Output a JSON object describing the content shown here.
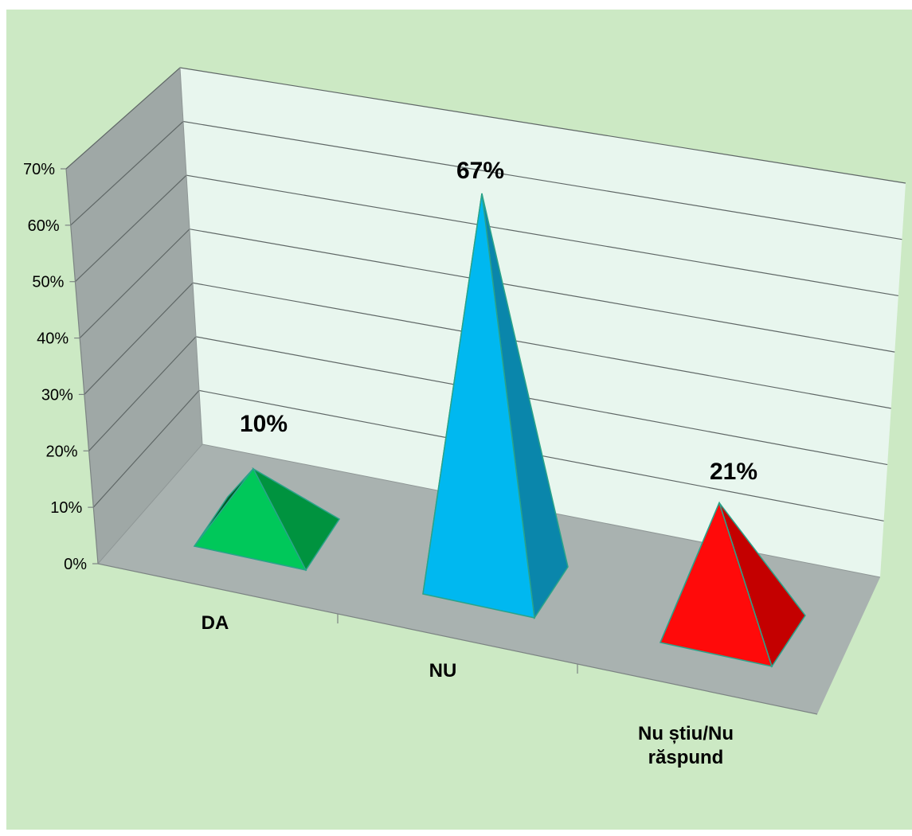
{
  "chart_data": {
    "type": "bar",
    "style": "3d-pyramid",
    "categories": [
      "DA",
      "NU",
      "Nu știu/Nu\nrăspund"
    ],
    "values": [
      10,
      67,
      21
    ],
    "data_labels": [
      "10%",
      "67%",
      "21%"
    ],
    "title": "",
    "xlabel": "",
    "ylabel": "",
    "ylim": [
      0,
      70
    ],
    "y_ticks": [
      0,
      10,
      20,
      30,
      40,
      50,
      60,
      70
    ],
    "y_tick_labels": [
      "0%",
      "10%",
      "20%",
      "30%",
      "40%",
      "50%",
      "60%",
      "70%"
    ],
    "grid": true,
    "legend": "none",
    "colors": {
      "background": "#cce9c4",
      "back_wall": "#e8f6ee",
      "side_wall": "#9fa8a6",
      "floor": "#a9b2b0",
      "gridline": "#5f6766",
      "bar_colors": [
        {
          "front": "#00c85a",
          "side": "#00933f",
          "dark": "#005a26"
        },
        {
          "front": "#00b8f0",
          "side": "#0a86ab",
          "dark": "#065a74"
        },
        {
          "front": "#ff0a0a",
          "side": "#c40000",
          "dark": "#6e0000"
        }
      ],
      "edge": "#2aa38a"
    }
  }
}
